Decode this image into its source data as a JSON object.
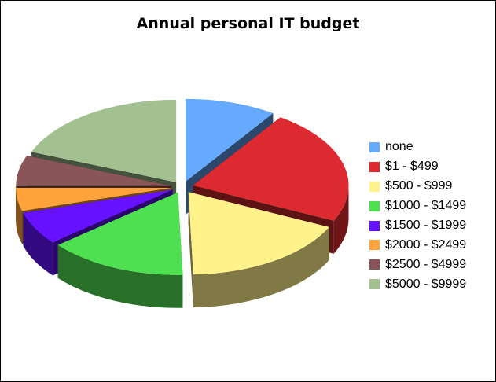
{
  "chart_data": {
    "type": "pie",
    "title": "Annual personal IT budget",
    "style": "3d-exploded",
    "legend_position": "right",
    "slices": [
      {
        "label": "none",
        "value": 9.5,
        "color": "#66aaff"
      },
      {
        "label": "$1 - $499",
        "value": 22.5,
        "color": "#dd2a30"
      },
      {
        "label": "$500 - $999",
        "value": 17.5,
        "color": "#fff28a"
      },
      {
        "label": "$1000 - $1499",
        "value": 14.5,
        "color": "#4fe052"
      },
      {
        "label": "$1500 - $1999",
        "value": 6.5,
        "color": "#6611ff"
      },
      {
        "label": "$2000 - $2499",
        "value": 4.5,
        "color": "#ffa33a"
      },
      {
        "label": "$2500 - $4999",
        "value": 6.0,
        "color": "#8a5559"
      },
      {
        "label": "$5000 - $9999",
        "value": 19.0,
        "color": "#a3c090"
      }
    ]
  }
}
